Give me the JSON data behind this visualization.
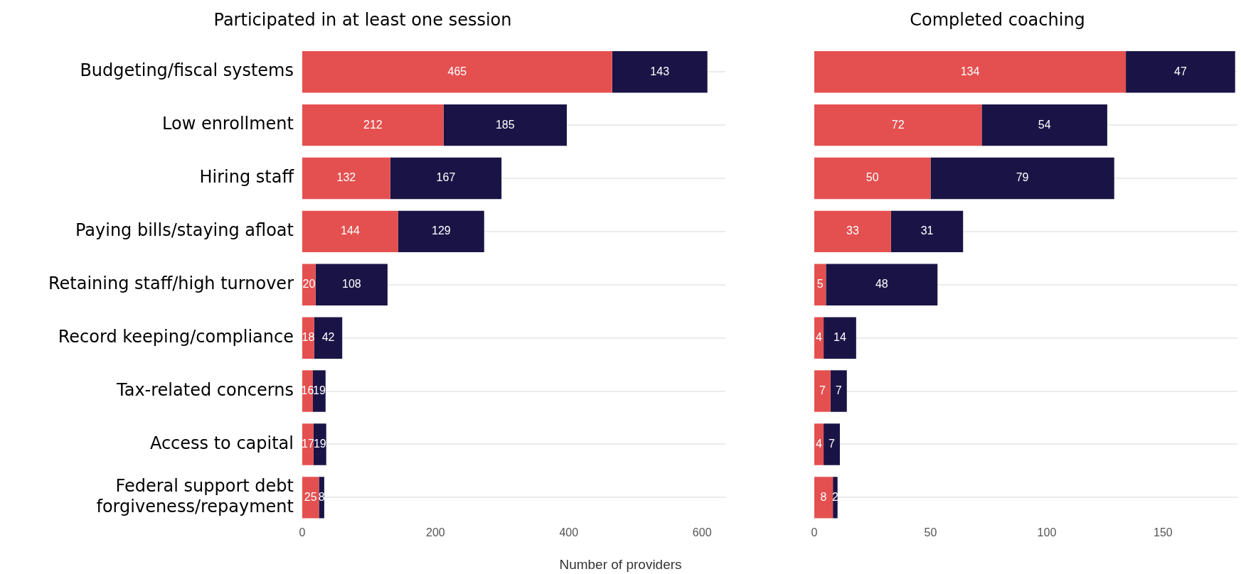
{
  "chart_data": [
    {
      "type": "bar",
      "orientation": "horizontal",
      "stacked": true,
      "title": "Participated in at least one session",
      "xlabel": "Number of providers",
      "categories": [
        "Budgeting/fiscal systems",
        "Low enrollment",
        "Hiring staff",
        "Paying bills/staying afloat",
        "Retaining staff/high turnover",
        "Record keeping/compliance",
        "Tax-related concerns",
        "Access to capital",
        "Federal support debt forgiveness/repayment"
      ],
      "series": [
        {
          "color": "#e45050",
          "values": [
            465,
            212,
            132,
            144,
            20,
            18,
            16,
            17,
            25
          ]
        },
        {
          "color": "#1a1446",
          "values": [
            143,
            185,
            167,
            129,
            108,
            42,
            19,
            19,
            8
          ]
        }
      ],
      "xlim": [
        0,
        635
      ],
      "xticks": [
        0,
        200,
        400,
        600
      ],
      "grid": "y",
      "data_labels": true
    },
    {
      "type": "bar",
      "orientation": "horizontal",
      "stacked": true,
      "title": "Completed coaching",
      "categories": [
        null,
        null,
        null,
        null,
        null,
        null,
        null,
        null,
        null
      ],
      "series": [
        {
          "color": "#e45050",
          "values": [
            134,
            72,
            50,
            33,
            5,
            4,
            7,
            4,
            8
          ]
        },
        {
          "color": "#1a1446",
          "values": [
            47,
            54,
            79,
            31,
            48,
            14,
            7,
            7,
            2
          ]
        }
      ],
      "xlim": [
        0,
        182
      ],
      "xticks": [
        0,
        50,
        100,
        150
      ],
      "grid": "y",
      "data_labels": true,
      "tick_labels": "x"
    }
  ]
}
